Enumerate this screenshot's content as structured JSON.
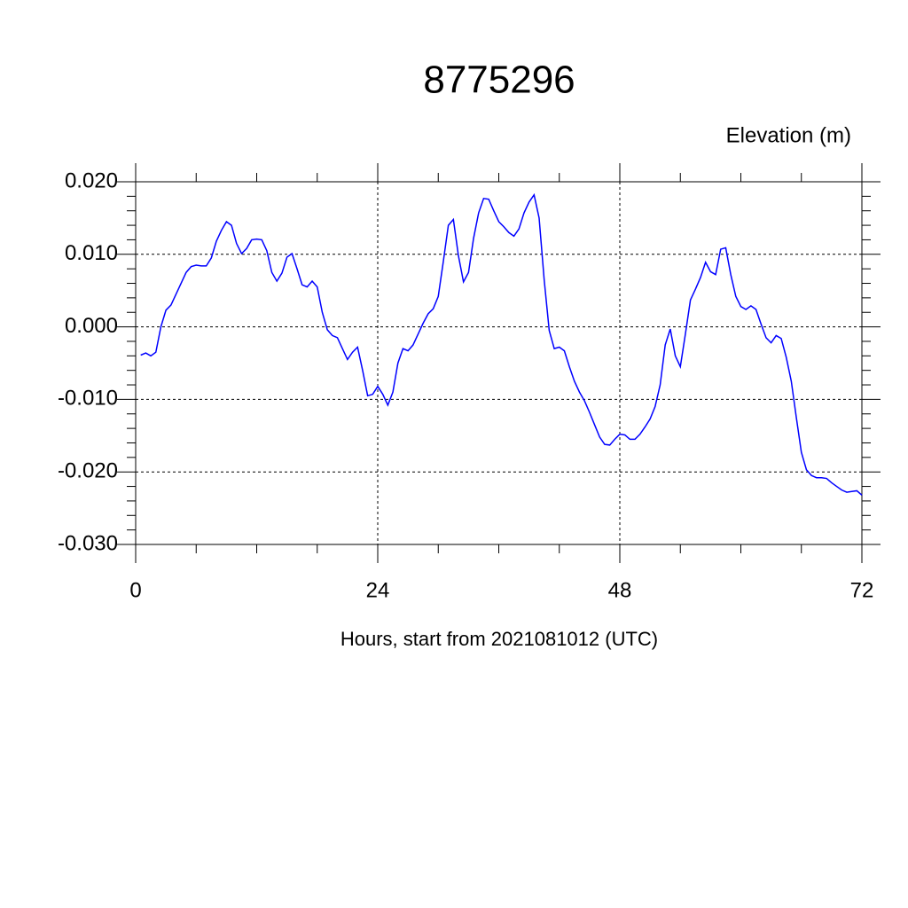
{
  "chart_data": {
    "type": "line",
    "title": "8775296",
    "ylabel": "Elevation (m)",
    "xlabel": "Hours, start from 2021081012 (UTC)",
    "xlim": [
      0,
      72
    ],
    "xticks": [
      0,
      24,
      48,
      72
    ],
    "xminorticks": [
      6,
      12,
      18,
      30,
      36,
      42,
      54,
      60,
      66
    ],
    "ylim": [
      -0.03,
      0.02
    ],
    "yticks": [
      {
        "value": -0.03,
        "label": "-0.030"
      },
      {
        "value": -0.02,
        "label": "-0.020"
      },
      {
        "value": -0.01,
        "label": "-0.010"
      },
      {
        "value": 0,
        "label": "0.000"
      },
      {
        "value": 0.01,
        "label": "0.010"
      },
      {
        "value": 0.02,
        "label": "0.020"
      }
    ],
    "yminorticks": [
      -0.028,
      -0.026,
      -0.024,
      -0.022,
      -0.018,
      -0.016,
      -0.014,
      -0.012,
      -0.008,
      -0.006,
      -0.004,
      -0.002,
      0.002,
      0.004,
      0.006,
      0.008,
      0.012,
      0.014,
      0.016,
      0.018
    ],
    "grid": true,
    "x": [
      0.5,
      1,
      1.5,
      2,
      2.5,
      3,
      3.5,
      4,
      4.5,
      5,
      5.5,
      6,
      6.5,
      7,
      7.5,
      8,
      8.5,
      9,
      9.5,
      10,
      10.5,
      11,
      11.5,
      12,
      12.5,
      13,
      13.5,
      14,
      14.5,
      15,
      15.5,
      16,
      16.5,
      17,
      17.5,
      18,
      18.5,
      19,
      19.5,
      20,
      20.5,
      21,
      21.5,
      22,
      22.5,
      23,
      23.5,
      24,
      24.5,
      25,
      25.5,
      26,
      26.5,
      27,
      27.5,
      28,
      28.5,
      29,
      29.5,
      30,
      30.5,
      31,
      31.5,
      32,
      32.5,
      33,
      33.5,
      34,
      34.5,
      35,
      35.5,
      36,
      36.5,
      37,
      37.5,
      38,
      38.5,
      39,
      39.5,
      40,
      40.5,
      41,
      41.5,
      42,
      42.5,
      43,
      43.5,
      44,
      44.5,
      45,
      45.5,
      46,
      46.5,
      47,
      47.5,
      48,
      48.5,
      49,
      49.5,
      50,
      50.5,
      51,
      51.5,
      52,
      52.5,
      53,
      53.5,
      54,
      54.5,
      55,
      55.5,
      56,
      56.5,
      57,
      57.5,
      58,
      58.5,
      59,
      59.5,
      60,
      60.5,
      61,
      61.5,
      62,
      62.5,
      63,
      63.5,
      64,
      64.5,
      65,
      65.5,
      66,
      66.5,
      67,
      67.5,
      68,
      68.5,
      69,
      69.5,
      70,
      70.5,
      71,
      71.5,
      72
    ],
    "series": [
      {
        "color": "#0000ff",
        "values": [
          -0.0039,
          -0.0036,
          -0.004,
          -0.0035,
          0.0,
          0.0023,
          0.003,
          0.0045,
          0.006,
          0.0075,
          0.0083,
          0.0085,
          0.0084,
          0.0084,
          0.0095,
          0.0118,
          0.0133,
          0.0145,
          0.014,
          0.0115,
          0.0101,
          0.0108,
          0.012,
          0.0121,
          0.012,
          0.0105,
          0.0075,
          0.0063,
          0.0074,
          0.0096,
          0.0101,
          0.008,
          0.0058,
          0.0055,
          0.0063,
          0.0055,
          0.002,
          -0.0004,
          -0.0012,
          -0.0015,
          -0.003,
          -0.0045,
          -0.0035,
          -0.0028,
          -0.006,
          -0.0095,
          -0.0093,
          -0.0082,
          -0.0093,
          -0.0108,
          -0.009,
          -0.005,
          -0.003,
          -0.0033,
          -0.0025,
          -0.001,
          0.0005,
          0.0018,
          0.0025,
          0.0042,
          0.009,
          0.014,
          0.0148,
          0.0098,
          0.0062,
          0.0075,
          0.0122,
          0.0157,
          0.0177,
          0.0176,
          0.016,
          0.0145,
          0.0138,
          0.013,
          0.0125,
          0.0135,
          0.0157,
          0.0172,
          0.0182,
          0.015,
          0.0065,
          -0.0005,
          -0.003,
          -0.0028,
          -0.0033,
          -0.0055,
          -0.0075,
          -0.009,
          -0.0102,
          -0.0118,
          -0.0135,
          -0.0152,
          -0.0162,
          -0.0163,
          -0.0155,
          -0.0148,
          -0.0149,
          -0.0155,
          -0.0155,
          -0.0148,
          -0.0138,
          -0.0127,
          -0.011,
          -0.008,
          -0.0025,
          -0.0003,
          -0.004,
          -0.0055,
          -0.001,
          0.0037,
          0.0052,
          0.0068,
          0.0089,
          0.0076,
          0.0072,
          0.0107,
          0.0109,
          0.0072,
          0.0042,
          0.0028,
          0.0024,
          0.0029,
          0.0024,
          0.0004,
          -0.0015,
          -0.0022,
          -0.0012,
          -0.0016,
          -0.0042,
          -0.0075,
          -0.0125,
          -0.0173,
          -0.0197,
          -0.0205,
          -0.0208,
          -0.0208,
          -0.0209,
          -0.0215,
          -0.022,
          -0.0225,
          -0.0228,
          -0.0227,
          -0.0226,
          -0.0232
        ]
      }
    ]
  }
}
